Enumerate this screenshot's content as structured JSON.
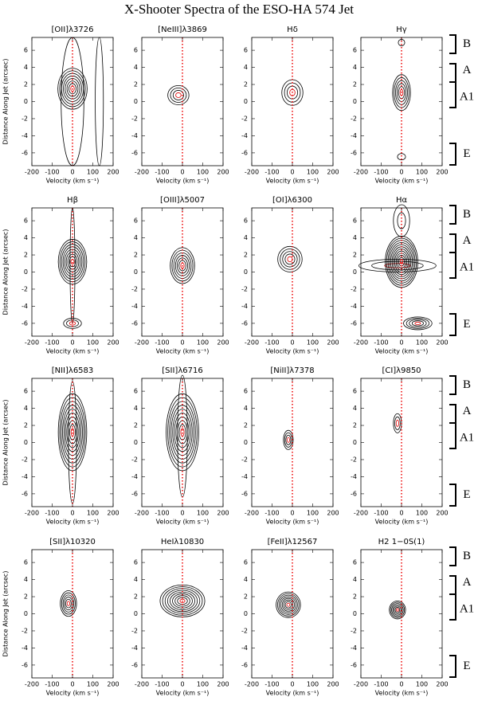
{
  "title": "X-Shooter Spectra of the ESO-HA 574 Jet",
  "regions": [
    "B",
    "A",
    "A1",
    "E"
  ],
  "chart_data": [
    {
      "type": "contour",
      "title": "[OII]λ3726",
      "xlabel": "Velocity (km s⁻¹)",
      "ylabel": "Distance Along Jet (arcsec)",
      "xlim": [
        -200,
        200
      ],
      "xticks": [
        -200,
        -100,
        0,
        100,
        200
      ],
      "ylim": [
        -7.5,
        7.5
      ],
      "yticks": [
        -6,
        -4,
        -2,
        0,
        2,
        4,
        6
      ]
    },
    {
      "type": "contour",
      "title": "[NeIII]λ3869",
      "xlabel": "Velocity (km s⁻¹)",
      "xlim": [
        -200,
        200
      ],
      "xticks": [
        -200,
        -100,
        0,
        100,
        200
      ],
      "ylim": [
        -7.5,
        7.5
      ],
      "yticks": [
        -6,
        -4,
        -2,
        0,
        2,
        4,
        6
      ]
    },
    {
      "type": "contour",
      "title": "Hδ",
      "xlabel": "Velocity (km s⁻¹)",
      "xlim": [
        -200,
        200
      ],
      "xticks": [
        -200,
        -100,
        0,
        100,
        200
      ],
      "ylim": [
        -7.5,
        7.5
      ],
      "yticks": [
        -6,
        -4,
        -2,
        0,
        2,
        4,
        6
      ]
    },
    {
      "type": "contour",
      "title": "Hγ",
      "xlabel": "Velocity (km s⁻¹)",
      "xlim": [
        -200,
        200
      ],
      "xticks": [
        -200,
        -100,
        0,
        100,
        200
      ],
      "ylim": [
        -7.5,
        7.5
      ],
      "yticks": [
        -6,
        -4,
        -2,
        0,
        2,
        4,
        6
      ]
    },
    {
      "type": "contour",
      "title": "Hβ",
      "xlabel": "Velocity (km s⁻¹)",
      "ylabel": "Distance Along Jet (arcsec)",
      "xlim": [
        -200,
        200
      ],
      "xticks": [
        -200,
        -100,
        0,
        100,
        200
      ],
      "ylim": [
        -7.5,
        7.5
      ],
      "yticks": [
        -6,
        -4,
        -2,
        0,
        2,
        4,
        6
      ]
    },
    {
      "type": "contour",
      "title": "[OIII]λ5007",
      "xlabel": "Velocity (km s⁻¹)",
      "xlim": [
        -200,
        200
      ],
      "xticks": [
        -200,
        -100,
        0,
        100,
        200
      ],
      "ylim": [
        -7.5,
        7.5
      ],
      "yticks": [
        -6,
        -4,
        -2,
        0,
        2,
        4,
        6
      ]
    },
    {
      "type": "contour",
      "title": "[OI]λ6300",
      "xlabel": "Velocity (km s⁻¹)",
      "xlim": [
        -200,
        200
      ],
      "xticks": [
        -200,
        -100,
        0,
        100,
        200
      ],
      "ylim": [
        -7.5,
        7.5
      ],
      "yticks": [
        -6,
        -4,
        -2,
        0,
        2,
        4,
        6
      ]
    },
    {
      "type": "contour",
      "title": "Hα",
      "xlabel": "Velocity (km s⁻¹)",
      "xlim": [
        -200,
        200
      ],
      "xticks": [
        -200,
        -100,
        0,
        100,
        200
      ],
      "ylim": [
        -7.5,
        7.5
      ],
      "yticks": [
        -6,
        -4,
        -2,
        0,
        2,
        4,
        6
      ]
    },
    {
      "type": "contour",
      "title": "[NII]λ6583",
      "xlabel": "Velocity (km s⁻¹)",
      "ylabel": "Distance Along Jet (arcsec)",
      "xlim": [
        -200,
        200
      ],
      "xticks": [
        -200,
        -100,
        0,
        100,
        200
      ],
      "ylim": [
        -7.5,
        7.5
      ],
      "yticks": [
        -6,
        -4,
        -2,
        0,
        2,
        4,
        6
      ]
    },
    {
      "type": "contour",
      "title": "[SII]λ6716",
      "xlabel": "Velocity (km s⁻¹)",
      "xlim": [
        -200,
        200
      ],
      "xticks": [
        -200,
        -100,
        0,
        100,
        200
      ],
      "ylim": [
        -7.5,
        7.5
      ],
      "yticks": [
        -6,
        -4,
        -2,
        0,
        2,
        4,
        6
      ]
    },
    {
      "type": "contour",
      "title": "[NiII]λ7378",
      "xlabel": "Velocity (km s⁻¹)",
      "xlim": [
        -200,
        200
      ],
      "xticks": [
        -200,
        -100,
        0,
        100,
        200
      ],
      "ylim": [
        -7.5,
        7.5
      ],
      "yticks": [
        -6,
        -4,
        -2,
        0,
        2,
        4,
        6
      ]
    },
    {
      "type": "contour",
      "title": "[CI]λ9850",
      "xlabel": "Velocity (km s⁻¹)",
      "xlim": [
        -200,
        200
      ],
      "xticks": [
        -200,
        -100,
        0,
        100,
        200
      ],
      "ylim": [
        -7.5,
        7.5
      ],
      "yticks": [
        -6,
        -4,
        -2,
        0,
        2,
        4,
        6
      ]
    },
    {
      "type": "contour",
      "title": "[SII]λ10320",
      "xlabel": "Velocity (km s⁻¹)",
      "ylabel": "Distance Along Jet (arcsec)",
      "xlim": [
        -200,
        200
      ],
      "xticks": [
        -200,
        -100,
        0,
        100,
        200
      ],
      "ylim": [
        -7.5,
        7.5
      ],
      "yticks": [
        -6,
        -4,
        -2,
        0,
        2,
        4,
        6
      ]
    },
    {
      "type": "contour",
      "title": "HeIλ10830",
      "xlabel": "Velocity (km s⁻¹)",
      "xlim": [
        -200,
        200
      ],
      "xticks": [
        -200,
        -100,
        0,
        100,
        200
      ],
      "ylim": [
        -7.5,
        7.5
      ],
      "yticks": [
        -6,
        -4,
        -2,
        0,
        2,
        4,
        6
      ]
    },
    {
      "type": "contour",
      "title": "[FeII]λ12567",
      "xlabel": "Velocity (km s⁻¹)",
      "xlim": [
        -200,
        200
      ],
      "xticks": [
        -200,
        -100,
        0,
        100,
        200
      ],
      "ylim": [
        -7.5,
        7.5
      ],
      "yticks": [
        -6,
        -4,
        -2,
        0,
        2,
        4,
        6
      ]
    },
    {
      "type": "contour",
      "title": "H2 1−0S(1)",
      "xlabel": "Velocity (km s⁻¹)",
      "xlim": [
        -200,
        200
      ],
      "xticks": [
        -200,
        -100,
        0,
        100,
        200
      ],
      "ylim": [
        -7.5,
        7.5
      ],
      "yticks": [
        -6,
        -4,
        -2,
        0,
        2,
        4,
        6
      ]
    }
  ]
}
